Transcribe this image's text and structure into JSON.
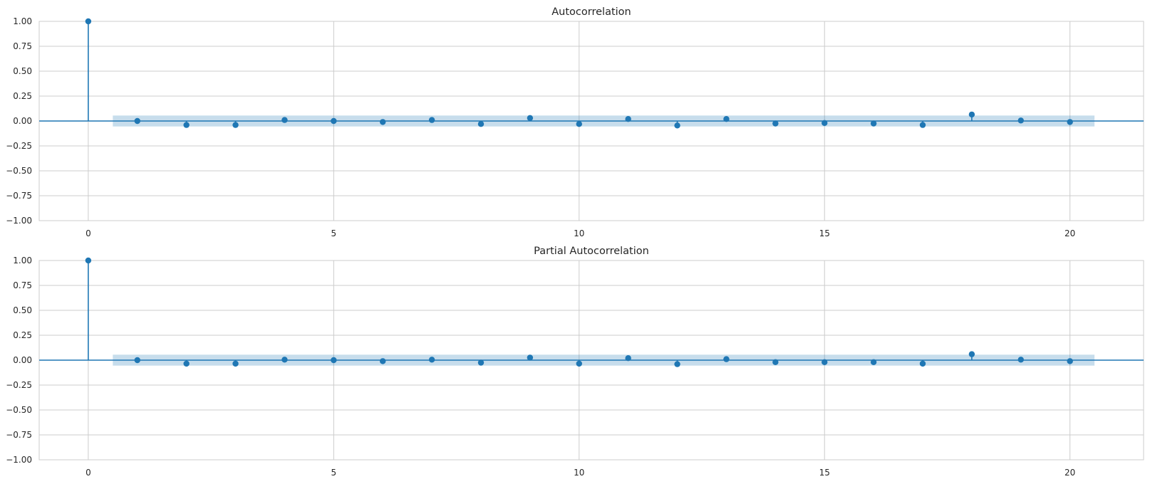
{
  "chart_data": [
    {
      "type": "stem",
      "title": "Autocorrelation",
      "xlabel": "",
      "ylabel": "",
      "xlim": [
        -1,
        21.5
      ],
      "ylim": [
        -1.0,
        1.0
      ],
      "grid": true,
      "xticks": [
        0,
        5,
        10,
        15,
        20
      ],
      "xtick_labels": [
        "0",
        "5",
        "10",
        "15",
        "20"
      ],
      "yticks": [
        1.0,
        0.75,
        0.5,
        0.25,
        0.0,
        -0.25,
        -0.5,
        -0.75,
        -1.0
      ],
      "ytick_labels": [
        "1.00",
        "0.75",
        "0.50",
        "0.25",
        "0.00",
        "−0.25",
        "−0.50",
        "−0.75",
        "−1.00"
      ],
      "x": [
        0,
        1,
        2,
        3,
        4,
        5,
        6,
        7,
        8,
        9,
        10,
        11,
        12,
        13,
        14,
        15,
        16,
        17,
        18,
        19,
        20
      ],
      "values": [
        1.0,
        0.0,
        -0.04,
        -0.04,
        0.01,
        0.0,
        -0.01,
        0.01,
        -0.03,
        0.03,
        -0.03,
        0.02,
        -0.045,
        0.02,
        -0.025,
        -0.02,
        -0.025,
        -0.04,
        0.065,
        0.005,
        -0.01
      ],
      "confidence_band": {
        "x_range": [
          0.5,
          20.5
        ],
        "lower": -0.055,
        "upper": 0.055
      }
    },
    {
      "type": "stem",
      "title": "Partial Autocorrelation",
      "xlabel": "",
      "ylabel": "",
      "xlim": [
        -1,
        21.5
      ],
      "ylim": [
        -1.0,
        1.0
      ],
      "grid": true,
      "xticks": [
        0,
        5,
        10,
        15,
        20
      ],
      "xtick_labels": [
        "0",
        "5",
        "10",
        "15",
        "20"
      ],
      "yticks": [
        1.0,
        0.75,
        0.5,
        0.25,
        0.0,
        -0.25,
        -0.5,
        -0.75,
        -1.0
      ],
      "ytick_labels": [
        "1.00",
        "0.75",
        "0.50",
        "0.25",
        "0.00",
        "−0.25",
        "−0.50",
        "−0.75",
        "−1.00"
      ],
      "x": [
        0,
        1,
        2,
        3,
        4,
        5,
        6,
        7,
        8,
        9,
        10,
        11,
        12,
        13,
        14,
        15,
        16,
        17,
        18,
        19,
        20
      ],
      "values": [
        1.0,
        0.0,
        -0.035,
        -0.035,
        0.005,
        0.0,
        -0.01,
        0.005,
        -0.025,
        0.025,
        -0.035,
        0.02,
        -0.04,
        0.01,
        -0.02,
        -0.02,
        -0.02,
        -0.035,
        0.06,
        0.005,
        -0.01
      ],
      "confidence_band": {
        "x_range": [
          0.5,
          20.5
        ],
        "lower": -0.055,
        "upper": 0.055
      }
    }
  ],
  "colors": {
    "marker": "#1f77b4",
    "band": "#1f77b4",
    "grid": "#cccccc",
    "text": "#262626"
  }
}
